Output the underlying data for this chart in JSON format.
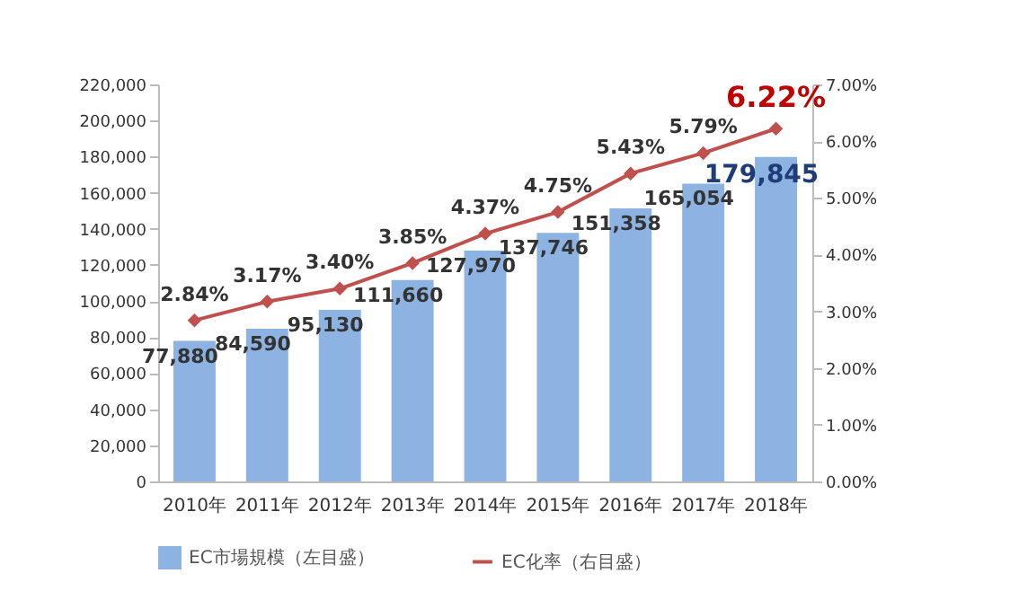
{
  "chart_data": {
    "type": "bar",
    "categories": [
      "2010年",
      "2011年",
      "2012年",
      "2013年",
      "2014年",
      "2015年",
      "2016年",
      "2017年",
      "2018年"
    ],
    "series": [
      {
        "name": "EC市場規模（左目盛）",
        "type": "bar",
        "color": "#8db3e2",
        "values": [
          77880,
          84590,
          95130,
          111660,
          127970,
          137746,
          151358,
          165054,
          179845
        ],
        "value_labels": [
          "77,880",
          "84,590",
          "95,130",
          "111,660",
          "127,970",
          "137,746",
          "151,358",
          "165,054",
          "179,845"
        ]
      },
      {
        "name": "EC化率（右目盛）",
        "type": "line",
        "axis": "y2",
        "color": "#c0504d",
        "values": [
          2.84,
          3.17,
          3.4,
          3.85,
          4.37,
          4.75,
          5.43,
          5.79,
          6.22
        ],
        "value_labels": [
          "2.84%",
          "3.17%",
          "3.40%",
          "3.85%",
          "4.37%",
          "4.75%",
          "5.43%",
          "5.79%",
          "6.22%"
        ]
      }
    ],
    "ylim": [
      0,
      220000
    ],
    "yticks": [
      0,
      {
        "value": 20000,
        "label": "20,000"
      },
      {
        "value": 40000,
        "label": "40,000"
      },
      {
        "value": 60000,
        "label": "60,000"
      },
      {
        "value": 80000,
        "label": "80,000"
      },
      {
        "value": 100000,
        "label": "100,000"
      },
      {
        "value": 120000,
        "label": "120,000"
      },
      {
        "value": 140000,
        "label": "140,000"
      },
      {
        "value": 160000,
        "label": "160,000"
      },
      {
        "value": 180000,
        "label": "180,000"
      },
      {
        "value": 200000,
        "label": "200,000"
      },
      {
        "value": 220000,
        "label": "220,000"
      }
    ],
    "y2lim": [
      0,
      7
    ],
    "y2ticks": [
      {
        "value": 0,
        "label": "0.00%"
      },
      {
        "value": 1,
        "label": "1.00%"
      },
      {
        "value": 2,
        "label": "2.00%"
      },
      {
        "value": 3,
        "label": "3.00%"
      },
      {
        "value": 4,
        "label": "4.00%"
      },
      {
        "value": 5,
        "label": "5.00%"
      },
      {
        "value": 6,
        "label": "6.00%"
      },
      {
        "value": 7,
        "label": "7.00%"
      }
    ],
    "marker": "diamond",
    "legend": "bottom"
  }
}
